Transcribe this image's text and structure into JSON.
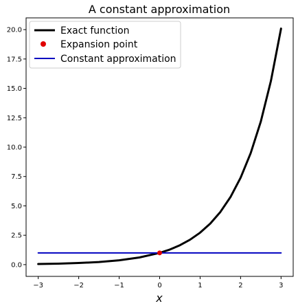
{
  "chart_data": {
    "type": "line",
    "title": "A constant approximation",
    "xlabel": "x",
    "ylabel": "",
    "xlim": [
      -3.3,
      3.3
    ],
    "ylim": [
      -1.0,
      21.0
    ],
    "xticks": [
      -3,
      -2,
      -1,
      0,
      1,
      2,
      3
    ],
    "xtick_labels": [
      "−3",
      "−2",
      "−1",
      "0",
      "1",
      "2",
      "3"
    ],
    "yticks": [
      0,
      2.5,
      5,
      7.5,
      10,
      12.5,
      15,
      17.5,
      20
    ],
    "ytick_labels": [
      "0.0",
      "2.5",
      "5.0",
      "7.5",
      "10.0",
      "12.5",
      "15.0",
      "17.5",
      "20.0"
    ],
    "grid": false,
    "legend_position": "top-left",
    "series": [
      {
        "name": "Exact function",
        "kind": "line",
        "color": "#000000",
        "x": [
          -3.0,
          -2.5,
          -2.0,
          -1.5,
          -1.0,
          -0.5,
          0.0,
          0.25,
          0.5,
          0.75,
          1.0,
          1.25,
          1.5,
          1.75,
          2.0,
          2.25,
          2.5,
          2.75,
          3.0
        ],
        "y": [
          0.05,
          0.08,
          0.14,
          0.22,
          0.37,
          0.61,
          1.0,
          1.28,
          1.65,
          2.12,
          2.72,
          3.49,
          4.48,
          5.75,
          7.39,
          9.49,
          12.18,
          15.64,
          20.09
        ]
      },
      {
        "name": "Expansion point",
        "kind": "point",
        "color": "#e00000",
        "x": [
          0.0
        ],
        "y": [
          1.0
        ]
      },
      {
        "name": "Constant approximation",
        "kind": "line",
        "color": "#0000c0",
        "x": [
          -3.0,
          3.0
        ],
        "y": [
          1.0,
          1.0
        ]
      }
    ]
  }
}
